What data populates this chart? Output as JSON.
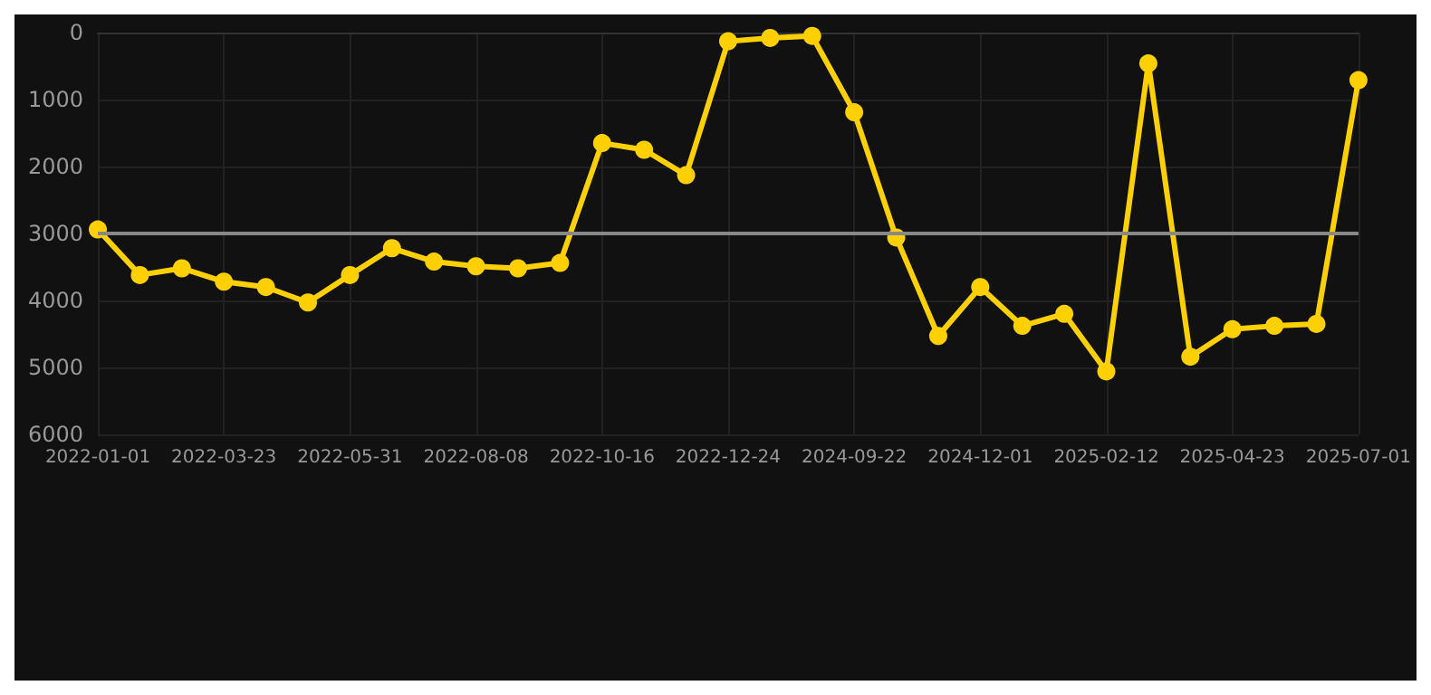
{
  "chart_data": {
    "type": "line",
    "categories": [
      "2022-01-01",
      null,
      null,
      "2022-03-23",
      null,
      null,
      "2022-05-31",
      null,
      null,
      "2022-08-08",
      null,
      null,
      "2022-10-16",
      null,
      null,
      "2022-12-24",
      null,
      null,
      "2024-09-22",
      null,
      null,
      "2024-12-01",
      null,
      null,
      "2025-02-12",
      null,
      null,
      "2025-04-23",
      null,
      null,
      "2025-07-01"
    ],
    "series": [
      {
        "color": "#ffd000",
        "values": [
          2940,
          3620,
          3520,
          3720,
          3800,
          4030,
          3620,
          3220,
          3420,
          3490,
          3520,
          3440,
          1650,
          1750,
          2130,
          130,
          80,
          50,
          1190,
          3060,
          4530,
          3800,
          4380,
          4200,
          5060,
          460,
          4840,
          4430,
          4380,
          4350,
          710
        ]
      }
    ],
    "ylim": [
      6000,
      0
    ],
    "yticks": [
      0,
      1000,
      2000,
      3000,
      4000,
      5000,
      6000
    ],
    "ref_lines": [
      {
        "axis": "y",
        "value": 3000,
        "color": "#888888"
      }
    ],
    "grid": true,
    "marker": "circle",
    "line_style": "solid"
  }
}
